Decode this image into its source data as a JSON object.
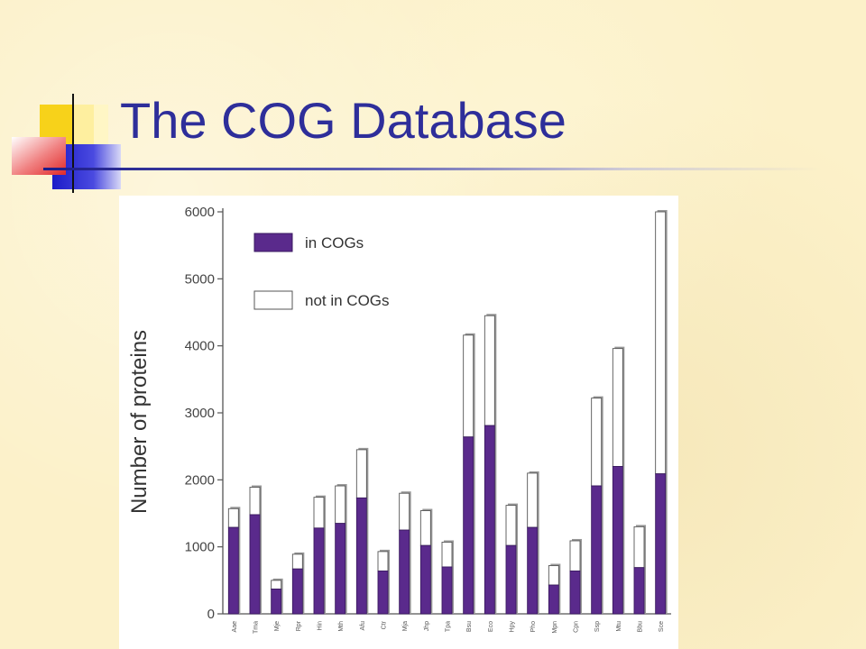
{
  "slide": {
    "title": "The COG Database"
  },
  "colors": {
    "title": "#2e2e9a",
    "background": "#fcf1c9",
    "in_cogs": "#5a2a8c",
    "not_in_cogs": "#ffffff",
    "decor_yellow": "#f7d21a",
    "decor_red": "#e53a3a",
    "decor_blue": "#2a2ad0"
  },
  "chart_data": {
    "type": "bar",
    "stacked": true,
    "ylabel": "Number of proteins",
    "xlabel": "",
    "ylim": [
      0,
      6000
    ],
    "yticks": [
      0,
      1000,
      2000,
      3000,
      4000,
      5000,
      6000
    ],
    "legend_position": "top-left",
    "categories": [
      "Aae",
      "Tma",
      "Mje",
      "Rpr",
      "Hin",
      "Mth",
      "Afu",
      "Ctr",
      "Mja",
      "Jhp",
      "Tpa",
      "Bsu",
      "Eco",
      "Hpy",
      "Pho",
      "Mpn",
      "Cpn",
      "Ssp",
      "Mtu",
      "Bbu",
      "Sce"
    ],
    "series": [
      {
        "name": "in COGs",
        "values": [
          1290,
          1480,
          370,
          670,
          1280,
          1350,
          1730,
          640,
          1250,
          1020,
          700,
          2640,
          2810,
          1020,
          1290,
          430,
          640,
          1910,
          2200,
          690,
          2090
        ]
      },
      {
        "name": "not in COGs",
        "values": [
          280,
          410,
          130,
          220,
          460,
          560,
          720,
          290,
          550,
          520,
          370,
          1520,
          1640,
          600,
          810,
          290,
          450,
          1310,
          1760,
          610,
          3910
        ]
      }
    ]
  }
}
